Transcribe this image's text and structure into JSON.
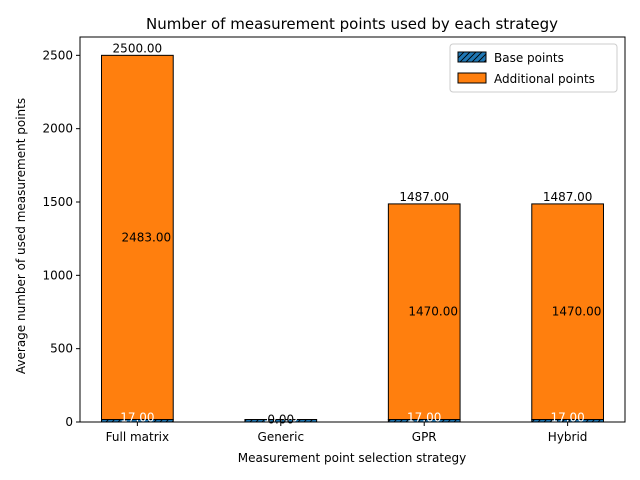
{
  "chart_data": {
    "type": "bar",
    "stacked": true,
    "title": "Number of measurement points used by each strategy",
    "xlabel": "Measurement point selection strategy",
    "ylabel": "Average number of used measurement points",
    "categories": [
      "Full matrix",
      "Generic",
      "GPR",
      "Hybrid"
    ],
    "ylim": [
      0,
      2625
    ],
    "yticks": [
      0,
      500,
      1000,
      1500,
      2000,
      2500
    ],
    "grid": false,
    "legend_position": "top-right",
    "series": [
      {
        "name": "Base points",
        "values": [
          17,
          17,
          17,
          17
        ],
        "color": "#1f77b4",
        "hatch": "diagonal",
        "labels": [
          "17.00",
          "17.00",
          "17.00",
          "17.00"
        ],
        "label_color": "#ffffff"
      },
      {
        "name": "Additional points",
        "values": [
          2483,
          0,
          1470,
          1470
        ],
        "color": "#ff7f0e",
        "labels": [
          "2483.00",
          "0.00",
          "1470.00",
          "1470.00"
        ],
        "label_color": "#000000"
      }
    ],
    "totals": [
      2500,
      17,
      1487,
      1487
    ],
    "total_labels": [
      "2500.00",
      "",
      "1487.00",
      "1487.00"
    ]
  }
}
